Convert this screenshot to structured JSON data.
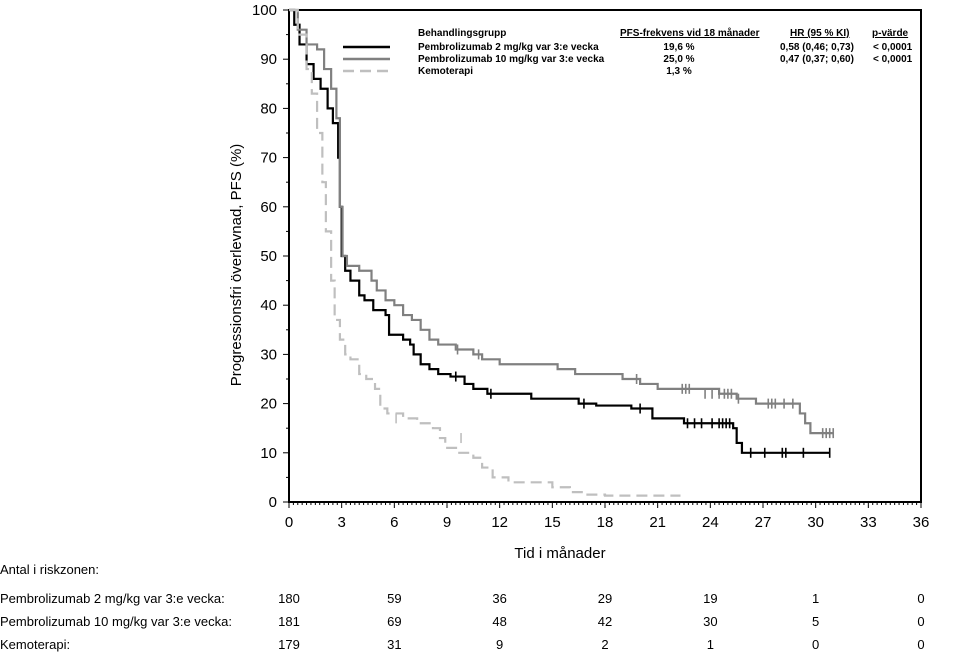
{
  "chart_data": {
    "type": "line",
    "subtype": "kaplan-meier",
    "xlabel": "Tid i månader",
    "ylabel": "Progressionsfri överlevnad, PFS (%)",
    "xlim": [
      0,
      36
    ],
    "ylim": [
      0,
      100
    ],
    "xticks": [
      "0",
      "3",
      "6",
      "9",
      "12",
      "15",
      "18",
      "21",
      "24",
      "27",
      "30",
      "33",
      "36"
    ],
    "yticks": [
      "0",
      "10",
      "20",
      "30",
      "40",
      "50",
      "60",
      "70",
      "80",
      "90",
      "100"
    ],
    "legend": {
      "placement": "top-right",
      "headers": [
        "Behandlingsgrupp",
        "PFS-frekvens vid 18 månader",
        "HR (95 % KI)",
        "p-värde"
      ],
      "rows": [
        {
          "name": "Pembrolizumab 2 mg/kg var 3:e vecka",
          "pfs18": "19,6 %",
          "hr": "0,58 (0,46; 0,73)",
          "p": "< 0,0001"
        },
        {
          "name": "Pembrolizumab 10 mg/kg var 3:e vecka",
          "pfs18": "25,0 %",
          "hr": "0,47 (0,37; 0,60)",
          "p": "< 0,0001"
        },
        {
          "name": "Kemoterapi",
          "pfs18": "1,3 %",
          "hr": "",
          "p": ""
        }
      ]
    },
    "series": [
      {
        "name": "Pembrolizumab 2 mg/kg var 3:e vecka",
        "color": "#000000",
        "dash": false,
        "points": [
          [
            0,
            100
          ],
          [
            0.3,
            97
          ],
          [
            0.6,
            93
          ],
          [
            1,
            89
          ],
          [
            1.4,
            86
          ],
          [
            1.8,
            84
          ],
          [
            2.2,
            80
          ],
          [
            2.5,
            77
          ],
          [
            2.8,
            70
          ],
          [
            2.9,
            60
          ],
          [
            3.0,
            50
          ],
          [
            3.2,
            47
          ],
          [
            3.5,
            45
          ],
          [
            4,
            42
          ],
          [
            4.3,
            41
          ],
          [
            4.8,
            39
          ],
          [
            5.5,
            38
          ],
          [
            5.7,
            34
          ],
          [
            6.5,
            33
          ],
          [
            6.9,
            32
          ],
          [
            7.1,
            30
          ],
          [
            7.5,
            28
          ],
          [
            8,
            27
          ],
          [
            8.5,
            26
          ],
          [
            9.2,
            25.5
          ],
          [
            10,
            24
          ],
          [
            10.5,
            23
          ],
          [
            11.3,
            22
          ],
          [
            13.8,
            21
          ],
          [
            16.5,
            20
          ],
          [
            17.5,
            19.6
          ],
          [
            19.5,
            19
          ],
          [
            20.7,
            17
          ],
          [
            22.5,
            16
          ],
          [
            25.3,
            15
          ],
          [
            25.5,
            12
          ],
          [
            25.8,
            10
          ],
          [
            30.8,
            10
          ]
        ],
        "censors": [
          [
            9.5,
            25.5
          ],
          [
            11.5,
            22
          ],
          [
            16.8,
            20
          ],
          [
            20,
            19
          ],
          [
            22.7,
            16
          ],
          [
            23.1,
            16
          ],
          [
            23.5,
            16
          ],
          [
            24.1,
            16
          ],
          [
            24.5,
            16
          ],
          [
            24.7,
            16
          ],
          [
            24.9,
            16
          ],
          [
            25.1,
            16
          ],
          [
            26.3,
            10
          ],
          [
            27.1,
            10
          ],
          [
            28.1,
            10
          ],
          [
            28.3,
            10
          ],
          [
            29.3,
            10
          ],
          [
            30.8,
            10
          ]
        ]
      },
      {
        "name": "Pembrolizumab 10 mg/kg var 3:e vecka",
        "color": "#808080",
        "dash": false,
        "points": [
          [
            0,
            100
          ],
          [
            0.5,
            96
          ],
          [
            1,
            93
          ],
          [
            1.6,
            92
          ],
          [
            2,
            88
          ],
          [
            2.4,
            84
          ],
          [
            2.7,
            78
          ],
          [
            2.9,
            60
          ],
          [
            3.05,
            50
          ],
          [
            3.3,
            48
          ],
          [
            4,
            47
          ],
          [
            4.7,
            45
          ],
          [
            5,
            43
          ],
          [
            5.5,
            41
          ],
          [
            6,
            40
          ],
          [
            6.5,
            38
          ],
          [
            7,
            37
          ],
          [
            7.5,
            35
          ],
          [
            8,
            33
          ],
          [
            8.5,
            32
          ],
          [
            9.5,
            31
          ],
          [
            10.5,
            30
          ],
          [
            11,
            29
          ],
          [
            12,
            28
          ],
          [
            15.3,
            27
          ],
          [
            16.3,
            26
          ],
          [
            19,
            25
          ],
          [
            20,
            24
          ],
          [
            21,
            23
          ],
          [
            24.5,
            22
          ],
          [
            25.5,
            21
          ],
          [
            26.6,
            20
          ],
          [
            29.1,
            18
          ],
          [
            29.4,
            16
          ],
          [
            29.7,
            14
          ],
          [
            31,
            14
          ]
        ],
        "censors": [
          [
            9.6,
            31
          ],
          [
            10.8,
            30
          ],
          [
            19.8,
            25
          ],
          [
            22.4,
            23
          ],
          [
            22.6,
            23
          ],
          [
            22.8,
            23
          ],
          [
            23.7,
            22
          ],
          [
            24.1,
            22
          ],
          [
            24.5,
            22
          ],
          [
            24.8,
            22
          ],
          [
            25,
            22
          ],
          [
            25.2,
            22
          ],
          [
            25.6,
            21
          ],
          [
            27.3,
            20
          ],
          [
            27.5,
            20
          ],
          [
            27.7,
            20
          ],
          [
            28.2,
            20
          ],
          [
            28.7,
            20
          ],
          [
            30.4,
            14
          ],
          [
            30.6,
            14
          ],
          [
            30.8,
            14
          ],
          [
            31,
            14
          ]
        ]
      },
      {
        "name": "Kemoterapi",
        "color": "#bfbfbf",
        "dash": true,
        "points": [
          [
            0,
            100
          ],
          [
            0.5,
            95
          ],
          [
            1.0,
            88
          ],
          [
            1.3,
            83
          ],
          [
            1.6,
            75
          ],
          [
            1.9,
            65
          ],
          [
            2.1,
            55
          ],
          [
            2.4,
            45
          ],
          [
            2.6,
            37
          ],
          [
            2.9,
            33
          ],
          [
            3.2,
            30
          ],
          [
            3.5,
            29
          ],
          [
            4.0,
            26
          ],
          [
            4.4,
            25
          ],
          [
            4.9,
            23
          ],
          [
            5.2,
            19
          ],
          [
            5.6,
            18
          ],
          [
            6.5,
            17
          ],
          [
            7.3,
            16
          ],
          [
            8.2,
            15
          ],
          [
            8.6,
            13
          ],
          [
            8.9,
            11
          ],
          [
            9.7,
            10
          ],
          [
            10.5,
            9
          ],
          [
            11.0,
            7
          ],
          [
            11.6,
            5
          ],
          [
            12.5,
            4
          ],
          [
            15,
            3
          ],
          [
            16,
            2
          ],
          [
            17,
            1.5
          ],
          [
            18,
            1.3
          ],
          [
            22.3,
            1.3
          ]
        ],
        "censors": [
          [
            6.1,
            17
          ],
          [
            9.8,
            13
          ]
        ]
      }
    ]
  },
  "risk_table": {
    "title": "Antal i riskzonen:",
    "times": [
      0,
      6,
      12,
      18,
      24,
      30,
      36
    ],
    "rows": [
      {
        "label": "Pembrolizumab 2 mg/kg var 3:e vecka:",
        "values": [
          "180",
          "59",
          "36",
          "29",
          "19",
          "1",
          "0"
        ]
      },
      {
        "label": "Pembrolizumab 10 mg/kg var 3:e vecka:",
        "values": [
          "181",
          "69",
          "48",
          "42",
          "30",
          "5",
          "0"
        ]
      },
      {
        "label": "Kemoterapi:",
        "values": [
          "179",
          "31",
          "9",
          "2",
          "1",
          "0",
          "0"
        ]
      }
    ]
  }
}
